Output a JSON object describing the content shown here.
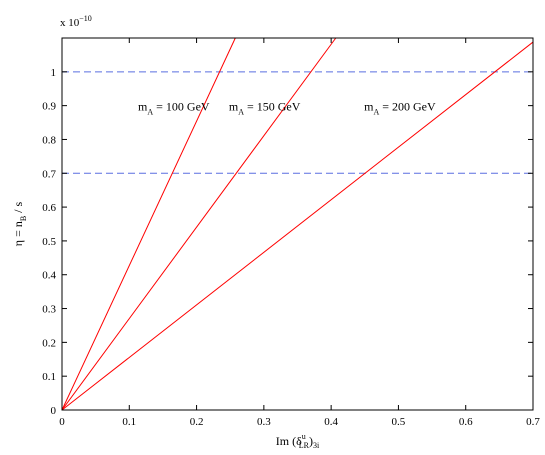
{
  "chart_data": {
    "type": "line",
    "xlabel": {
      "main": "Im (δ",
      "sup": "u",
      "sub": "LR",
      "close": ")",
      "sub2": "3i"
    },
    "ylabel": {
      "main": "η = n",
      "sub": "B",
      "rest": " / s"
    },
    "exponent": {
      "base": "x 10",
      "power": "−10"
    },
    "xlim": [
      0,
      0.7
    ],
    "ylim": [
      0,
      1.1
    ],
    "x_ticks": [
      "0",
      "0.1",
      "0.2",
      "0.3",
      "0.4",
      "0.5",
      "0.6",
      "0.7"
    ],
    "y_ticks": [
      "0",
      "0.1",
      "0.2",
      "0.3",
      "0.4",
      "0.5",
      "0.6",
      "0.7",
      "0.8",
      "0.9",
      "1"
    ],
    "series": [
      {
        "name": "m_A = 100 GeV",
        "color": "#ff0000",
        "x": [
          0,
          0.2576
        ],
        "y": [
          0,
          1.1
        ]
      },
      {
        "name": "m_A = 150 GeV",
        "color": "#ff0000",
        "x": [
          0,
          0.4069
        ],
        "y": [
          0,
          1.1
        ]
      },
      {
        "name": "m_A = 200 GeV",
        "color": "#ff0000",
        "x": [
          0,
          0.7
        ],
        "y": [
          0,
          1.088
        ]
      }
    ],
    "hlines": [
      {
        "y": 1.0,
        "color": "#5a6fe0",
        "style": "dashed"
      },
      {
        "y": 0.7,
        "color": "#5a6fe0",
        "style": "dashed"
      }
    ],
    "annotations": [
      {
        "id": "ann-100",
        "main": "m",
        "sub": "A",
        "rest": " = 100 GeV",
        "x": 0.113,
        "y": 0.885
      },
      {
        "id": "ann-150",
        "main": "m",
        "sub": "A",
        "rest": " = 150 GeV",
        "x": 0.248,
        "y": 0.885
      },
      {
        "id": "ann-200",
        "main": "m",
        "sub": "A",
        "rest": " = 200 GeV",
        "x": 0.449,
        "y": 0.885
      }
    ],
    "grid": false
  }
}
